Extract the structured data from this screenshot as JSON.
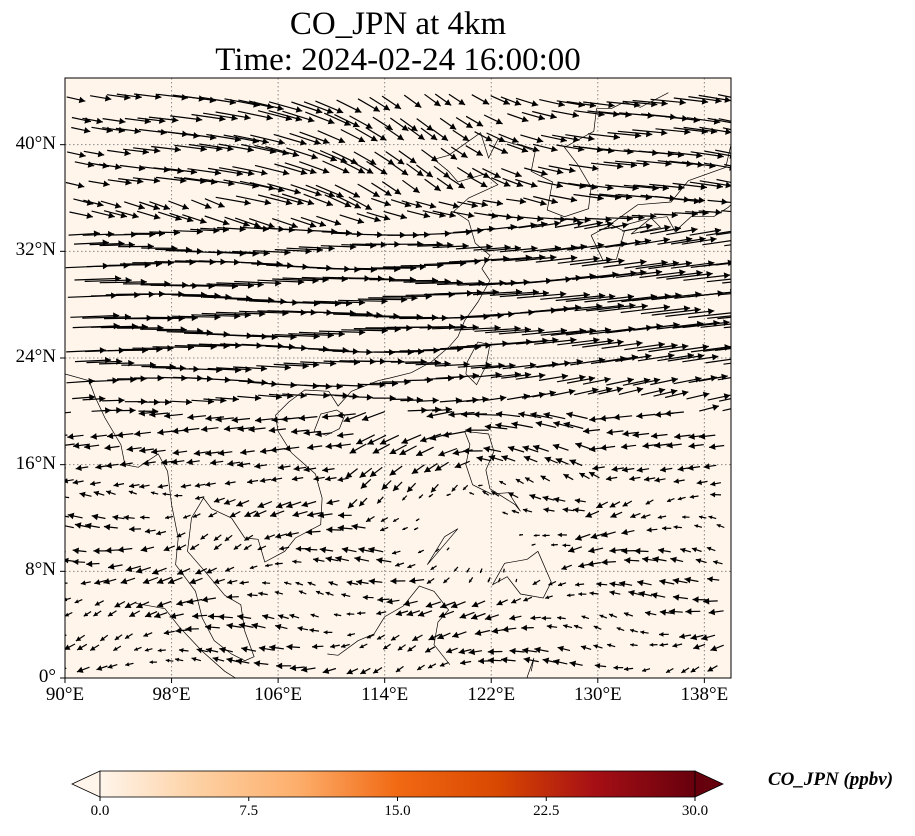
{
  "title": {
    "line1": "CO_JPN at 4km",
    "line2": "Time: 2024-02-24 16:00:00"
  },
  "map": {
    "lon_range": [
      90,
      140
    ],
    "lat_range": [
      0,
      45
    ],
    "lon_ticks": [
      {
        "value": 90,
        "label": "90°E"
      },
      {
        "value": 98,
        "label": "98°E"
      },
      {
        "value": 106,
        "label": "106°E"
      },
      {
        "value": 114,
        "label": "114°E"
      },
      {
        "value": 122,
        "label": "122°E"
      },
      {
        "value": 130,
        "label": "130°E"
      },
      {
        "value": 138,
        "label": "138°E"
      }
    ],
    "lat_ticks": [
      {
        "value": 0,
        "label": "0°"
      },
      {
        "value": 8,
        "label": "8°N"
      },
      {
        "value": 16,
        "label": "16°N"
      },
      {
        "value": 24,
        "label": "24°N"
      },
      {
        "value": 32,
        "label": "32°N"
      },
      {
        "value": 40,
        "label": "40°N"
      }
    ],
    "background_color": "#fff5eb",
    "gridlines": "dotted",
    "vector_color": "#000000",
    "coastline_color": "#000000"
  },
  "colorbar": {
    "label": "CO_JPN (ppbv)",
    "range": [
      0,
      30
    ],
    "ticks": [
      {
        "value": 0,
        "label": "0.0"
      },
      {
        "value": 7.5,
        "label": "7.5"
      },
      {
        "value": 15,
        "label": "15.0"
      },
      {
        "value": 22.5,
        "label": "22.5"
      },
      {
        "value": 30,
        "label": "30.0"
      }
    ],
    "colormap": [
      "#fff5eb",
      "#fdd0a2",
      "#fdae6b",
      "#f16913",
      "#d94801",
      "#a50f15",
      "#67000d"
    ],
    "extend": "both"
  }
}
